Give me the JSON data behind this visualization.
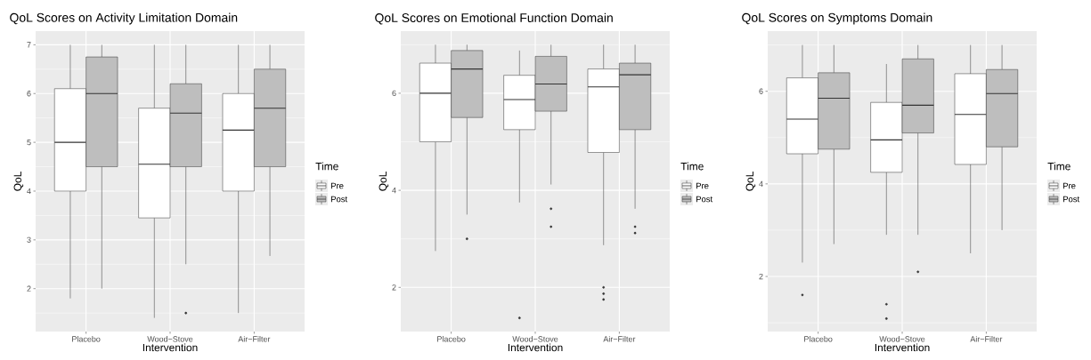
{
  "chart_data": [
    {
      "type": "box",
      "title": "QoL Scores on Activity Limitation Domain",
      "xlabel": "Intervention",
      "ylabel": "QoL",
      "legend_title": "Time",
      "legend": "right",
      "grid": true,
      "categories": [
        "Placebo",
        "Wood−Stove",
        "Air−Filter"
      ],
      "ylim": [
        1.12,
        7.28
      ],
      "yticks": [
        2,
        3,
        4,
        5,
        6,
        7
      ],
      "series": [
        {
          "name": "Pre",
          "color": "#ffffff",
          "boxes": [
            {
              "low": 1.8,
              "q1": 4,
              "median": 5,
              "q3": 6.1,
              "high": 7
            },
            {
              "low": 1.4,
              "q1": 3.45,
              "median": 4.55,
              "q3": 5.7,
              "high": 7
            },
            {
              "low": 1.5,
              "q1": 4,
              "median": 5.25,
              "q3": 6,
              "high": 7
            }
          ]
        },
        {
          "name": "Post",
          "color": "#bebebe",
          "boxes": [
            {
              "low": 2,
              "q1": 4.5,
              "median": 6,
              "q3": 6.75,
              "high": 7
            },
            {
              "low": 2.5,
              "q1": 4.5,
              "median": 5.6,
              "q3": 6.2,
              "high": 7,
              "outliers": [
                1.5
              ]
            },
            {
              "low": 2.67,
              "q1": 4.5,
              "median": 5.7,
              "q3": 6.5,
              "high": 7
            }
          ]
        }
      ]
    },
    {
      "type": "box",
      "title": "QoL Scores on Emotional Function Domain",
      "xlabel": "Intervention",
      "ylabel": "QoL",
      "legend_title": "Time",
      "legend": "right",
      "grid": true,
      "categories": [
        "Placebo",
        "Wood−Stove",
        "Air−Filter"
      ],
      "ylim": [
        1.09,
        7.28
      ],
      "yticks": [
        2,
        4,
        6
      ],
      "series": [
        {
          "name": "Pre",
          "color": "#ffffff",
          "boxes": [
            {
              "low": 2.75,
              "q1": 5,
              "median": 6,
              "q3": 6.62,
              "high": 7
            },
            {
              "low": 3.75,
              "q1": 5.25,
              "median": 5.87,
              "q3": 6.37,
              "high": 6.88,
              "outliers": [
                1.37
              ]
            },
            {
              "low": 2.87,
              "q1": 4.78,
              "median": 6.13,
              "q3": 6.5,
              "high": 7,
              "outliers": [
                2,
                1.87,
                1.75
              ]
            }
          ]
        },
        {
          "name": "Post",
          "color": "#bebebe",
          "boxes": [
            {
              "low": 3.5,
              "q1": 5.5,
              "median": 6.5,
              "q3": 6.88,
              "high": 7,
              "outliers": [
                3
              ]
            },
            {
              "low": 4.12,
              "q1": 5.63,
              "median": 6.19,
              "q3": 6.76,
              "high": 7,
              "outliers": [
                3.62,
                3.25
              ]
            },
            {
              "low": 3.62,
              "q1": 5.25,
              "median": 6.38,
              "q3": 6.62,
              "high": 7,
              "outliers": [
                3.25,
                3.12
              ]
            }
          ]
        }
      ]
    },
    {
      "type": "box",
      "title": "QoL Scores on Symptoms Domain",
      "xlabel": "Intervention",
      "ylabel": "QoL",
      "legend_title": "Time",
      "legend": "right",
      "grid": true,
      "categories": [
        "Placebo",
        "Wood−Stove",
        "Air−Filter"
      ],
      "ylim": [
        0.81,
        7.3
      ],
      "yticks": [
        2,
        4,
        6
      ],
      "series": [
        {
          "name": "Pre",
          "color": "#ffffff",
          "boxes": [
            {
              "low": 2.3,
              "q1": 4.65,
              "median": 5.4,
              "q3": 6.29,
              "high": 7,
              "outliers": [
                1.6
              ]
            },
            {
              "low": 2.9,
              "q1": 4.25,
              "median": 4.95,
              "q3": 5.76,
              "high": 6.59,
              "outliers": [
                1.4,
                1.09
              ]
            },
            {
              "low": 2.5,
              "q1": 4.42,
              "median": 5.5,
              "q3": 6.38,
              "high": 7
            }
          ]
        },
        {
          "name": "Post",
          "color": "#bebebe",
          "boxes": [
            {
              "low": 2.7,
              "q1": 4.75,
              "median": 5.85,
              "q3": 6.4,
              "high": 7
            },
            {
              "low": 2.9,
              "q1": 5.1,
              "median": 5.7,
              "q3": 6.7,
              "high": 7,
              "outliers": [
                2.1
              ]
            },
            {
              "low": 3,
              "q1": 4.8,
              "median": 5.95,
              "q3": 6.47,
              "high": 7
            }
          ]
        }
      ]
    }
  ]
}
